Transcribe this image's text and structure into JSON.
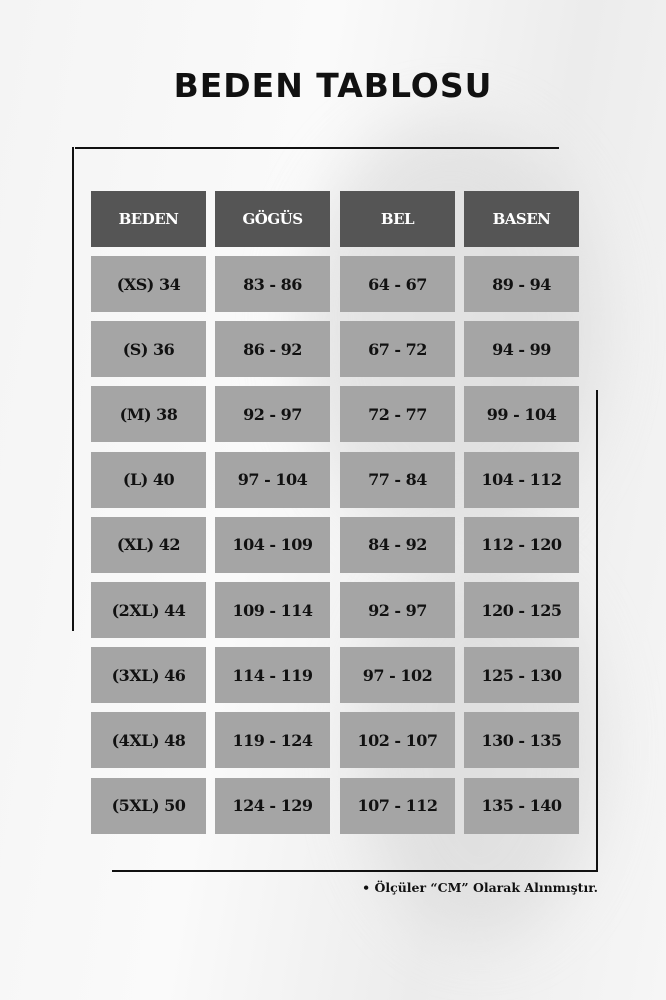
{
  "title": "BEDEN TABLOSU",
  "colors": {
    "header_bg": "#555555",
    "cell_bg": "#a5a5a5",
    "header_text": "#ffffff",
    "cell_text": "#111111"
  },
  "table": {
    "headers": [
      "BEDEN",
      "GÖGÜS",
      "BEL",
      "BASEN"
    ],
    "rows": [
      [
        "(XS) 34",
        "83 - 86",
        "64 - 67",
        "89 - 94"
      ],
      [
        "(S) 36",
        "86 - 92",
        "67 - 72",
        "94 - 99"
      ],
      [
        "(M) 38",
        "92 - 97",
        "72 - 77",
        "99 - 104"
      ],
      [
        "(L) 40",
        "97 - 104",
        "77 - 84",
        "104 - 112"
      ],
      [
        "(XL) 42",
        "104 - 109",
        "84 - 92",
        "112 - 120"
      ],
      [
        "(2XL) 44",
        "109 - 114",
        "92 - 97",
        "120 - 125"
      ],
      [
        "(3XL) 46",
        "114 - 119",
        "97 - 102",
        "125 - 130"
      ],
      [
        "(4XL) 48",
        "119 - 124",
        "102 - 107",
        "130 - 135"
      ],
      [
        "(5XL) 50",
        "124 - 129",
        "107 - 112",
        "135 - 140"
      ]
    ]
  },
  "note": "• Ölçüler “CM” Olarak Alınmıştır."
}
